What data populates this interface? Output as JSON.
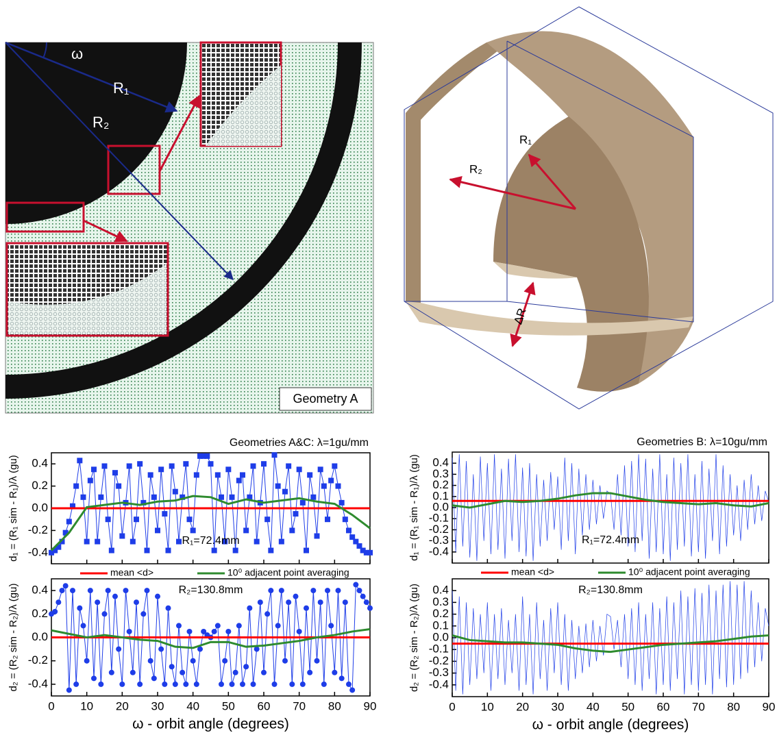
{
  "figure": {
    "geometry_a": {
      "omega": "ω",
      "r1": "R₁",
      "r2": "R₂",
      "caption": "Geometry A"
    },
    "geometry_b": {
      "r1": "R₁",
      "r2": "R₂",
      "delta_r": "ΔR"
    }
  },
  "chart_data": [
    {
      "type": "line",
      "title": "Geometries A&C: λ=1gu/mm",
      "y_label": "d₁ = (R₁ sim - R₁)/λ (gu)",
      "annotation": "R₁=72.4mm",
      "x": [
        0,
        1,
        2,
        3,
        4,
        5,
        6,
        7,
        8,
        9,
        10,
        11,
        12,
        13,
        14,
        15,
        16,
        17,
        18,
        19,
        20,
        21,
        22,
        23,
        24,
        25,
        26,
        27,
        28,
        29,
        30,
        31,
        32,
        33,
        34,
        35,
        36,
        37,
        38,
        39,
        40,
        41,
        42,
        43,
        44,
        45,
        46,
        47,
        48,
        49,
        50,
        51,
        52,
        53,
        54,
        55,
        56,
        57,
        58,
        59,
        60,
        61,
        62,
        63,
        64,
        65,
        66,
        67,
        68,
        69,
        70,
        71,
        72,
        73,
        74,
        75,
        76,
        77,
        78,
        79,
        80,
        81,
        82,
        83,
        84,
        85,
        86,
        87,
        88,
        89,
        90
      ],
      "xlim": [
        0,
        90
      ],
      "xticks": [
        0,
        10,
        20,
        30,
        40,
        50,
        60,
        70,
        80,
        90
      ],
      "show_xtick_labels": false,
      "ylim": [
        -0.5,
        0.5
      ],
      "yticks": [
        -0.4,
        -0.2,
        {
          "value": 0,
          "label": "0.0"
        },
        0.2,
        0.4
      ],
      "legend": "below",
      "mean": {
        "name": "mean <d>",
        "color": "#ff0000",
        "value": 0
      },
      "series": [
        {
          "color": "#1e3de8",
          "marker": "square",
          "values": [
            -0.4,
            -0.38,
            -0.35,
            -0.3,
            -0.22,
            -0.12,
            0.02,
            0.2,
            0.43,
            0.1,
            -0.3,
            0.25,
            0.35,
            -0.3,
            0.1,
            0.38,
            -0.1,
            -0.38,
            0.32,
            0.2,
            -0.25,
            0.05,
            0.38,
            -0.3,
            -0.1,
            0.4,
            0.05,
            -0.38,
            0.3,
            0.1,
            -0.2,
            0.35,
            -0.05,
            -0.38,
            0.38,
            0.15,
            -0.3,
            0.1,
            0.4,
            -0.1,
            -0.2,
            0.3,
            0.47,
            0.47,
            0.47,
            0.4,
            -0.38,
            0.3,
            0.1,
            -0.3,
            0.35,
            0.1,
            -0.38,
            0.25,
            0.3,
            -0.2,
            0.1,
            0.38,
            -0.3,
            0.05,
            0.4,
            -0.1,
            -0.38,
            0.48,
            0.2,
            -0.3,
            0.15,
            0.38,
            -0.2,
            -0.05,
            0.35,
            0.05,
            -0.38,
            0.3,
            0.1,
            -0.25,
            0.35,
            0.2,
            -0.1,
            0.25,
            0.38,
            0.2,
            0.05,
            -0.1,
            -0.2,
            -0.26,
            -0.3,
            -0.34,
            -0.38,
            -0.4,
            -0.4
          ]
        },
        {
          "name": "10⁰ adjacent point averaging",
          "color": "#2e8b2e",
          "x": [
            0,
            5,
            10,
            15,
            20,
            25,
            30,
            35,
            40,
            45,
            50,
            55,
            60,
            65,
            70,
            75,
            80,
            85,
            90
          ],
          "values": [
            -0.38,
            -0.22,
            0.01,
            0.03,
            0.05,
            0.03,
            0.06,
            0.07,
            0.11,
            0.1,
            0.04,
            0.08,
            0.05,
            0.07,
            0.09,
            0.06,
            0.04,
            -0.06,
            -0.18
          ]
        }
      ]
    },
    {
      "type": "line",
      "y_label": "d₂ = (R₂ sim - R₂)/λ (gu)",
      "annotation": "R₂=130.8mm",
      "x_label": "ω - orbit angle (degrees)",
      "x": [
        0,
        1,
        2,
        3,
        4,
        5,
        6,
        7,
        8,
        9,
        10,
        11,
        12,
        13,
        14,
        15,
        16,
        17,
        18,
        19,
        20,
        21,
        22,
        23,
        24,
        25,
        26,
        27,
        28,
        29,
        30,
        31,
        32,
        33,
        34,
        35,
        36,
        37,
        38,
        39,
        40,
        41,
        42,
        43,
        44,
        45,
        46,
        47,
        48,
        49,
        50,
        51,
        52,
        53,
        54,
        55,
        56,
        57,
        58,
        59,
        60,
        61,
        62,
        63,
        64,
        65,
        66,
        67,
        68,
        69,
        70,
        71,
        72,
        73,
        74,
        75,
        76,
        77,
        78,
        79,
        80,
        81,
        82,
        83,
        84,
        85,
        86,
        87,
        88,
        89,
        90
      ],
      "xlim": [
        0,
        90
      ],
      "xticks": [
        0,
        10,
        20,
        30,
        40,
        50,
        60,
        70,
        80,
        90
      ],
      "ylim": [
        -0.5,
        0.5
      ],
      "yticks": [
        -0.4,
        -0.2,
        {
          "value": 0,
          "label": "0.0"
        },
        0.2,
        0.4
      ],
      "mean": {
        "color": "#ff0000",
        "value": 0
      },
      "series": [
        {
          "color": "#1e3de8",
          "marker": "circle",
          "values": [
            0.2,
            0.22,
            0.3,
            0.4,
            0.44,
            -0.45,
            0.4,
            -0.4,
            0.25,
            0.1,
            -0.2,
            0.4,
            -0.35,
            0.3,
            -0.4,
            0.2,
            0.4,
            -0.3,
            0.35,
            -0.1,
            -0.4,
            0.4,
            0.05,
            -0.3,
            0.3,
            -0.4,
            0.2,
            0.4,
            -0.2,
            -0.35,
            0.35,
            -0.1,
            -0.4,
            0.25,
            -0.25,
            -0.4,
            0.1,
            -0.3,
            -0.4,
            0.05,
            -0.2,
            -0.4,
            -0.1,
            0.05,
            0.02,
            0.0,
            0.05,
            0.1,
            -0.4,
            -0.2,
            0.05,
            -0.4,
            -0.3,
            0.1,
            -0.4,
            -0.25,
            0.25,
            -0.4,
            -0.1,
            0.3,
            -0.3,
            0.2,
            0.4,
            -0.4,
            0.1,
            0.4,
            -0.2,
            0.3,
            -0.4,
            0.35,
            0.05,
            -0.4,
            0.25,
            -0.3,
            0.4,
            -0.2,
            0.3,
            -0.4,
            0.4,
            0.1,
            -0.3,
            0.4,
            -0.35,
            0.3,
            -0.4,
            -0.45,
            0.45,
            0.4,
            0.35,
            0.3,
            0.25
          ]
        },
        {
          "color": "#2e8b2e",
          "x": [
            0,
            5,
            10,
            15,
            20,
            25,
            30,
            35,
            40,
            45,
            50,
            55,
            60,
            65,
            70,
            75,
            80,
            85,
            90
          ],
          "values": [
            0.06,
            0.03,
            0.0,
            0.02,
            0.0,
            -0.02,
            -0.03,
            -0.08,
            -0.09,
            -0.04,
            -0.04,
            -0.08,
            -0.07,
            -0.05,
            -0.03,
            0.0,
            0.02,
            0.05,
            0.07
          ]
        }
      ]
    },
    {
      "type": "line",
      "title": "Geometries B: λ=10gu/mm",
      "y_label": "d₁ = (R₁ sim - R₁)/λ (gu)",
      "annotation": "R₁=72.4mm",
      "x": [
        0,
        1,
        2,
        3,
        4,
        5,
        6,
        7,
        8,
        9,
        10,
        11,
        12,
        13,
        14,
        15,
        16,
        17,
        18,
        19,
        20,
        21,
        22,
        23,
        24,
        25,
        26,
        27,
        28,
        29,
        30,
        31,
        32,
        33,
        34,
        35,
        36,
        37,
        38,
        39,
        40,
        41,
        42,
        43,
        44,
        45,
        46,
        47,
        48,
        49,
        50,
        51,
        52,
        53,
        54,
        55,
        56,
        57,
        58,
        59,
        60,
        61,
        62,
        63,
        64,
        65,
        66,
        67,
        68,
        69,
        70,
        71,
        72,
        73,
        74,
        75,
        76,
        77,
        78,
        79,
        80,
        81,
        82,
        83,
        84,
        85,
        86,
        87,
        88,
        89,
        90
      ],
      "xlim": [
        0,
        90
      ],
      "xticks": [
        0,
        10,
        20,
        30,
        40,
        50,
        60,
        70,
        80,
        90
      ],
      "show_xtick_labels": false,
      "ylim": [
        -0.5,
        0.5
      ],
      "yticks": [
        -0.4,
        -0.3,
        -0.2,
        -0.1,
        {
          "value": 0,
          "label": "0.0"
        },
        0.1,
        0.2,
        0.3,
        0.4
      ],
      "legend": "below",
      "mean": {
        "name": "mean <d>",
        "color": "#ff0000",
        "value": 0.06
      },
      "series": [
        {
          "color": "#1e3de8",
          "marker": "none",
          "values": [
            0.45,
            -0.4,
            0.48,
            -0.35,
            0.42,
            -0.45,
            0.3,
            -0.48,
            0.46,
            -0.3,
            0.4,
            -0.42,
            0.48,
            -0.38,
            0.35,
            -0.46,
            0.44,
            -0.3,
            0.48,
            -0.4,
            0.36,
            -0.44,
            0.4,
            -0.48,
            0.3,
            -0.35,
            0.25,
            -0.3,
            0.32,
            -0.2,
            0.28,
            -0.38,
            0.45,
            -0.3,
            0.4,
            -0.42,
            0.35,
            -0.25,
            0.3,
            -0.2,
            0.25,
            -0.15,
            0.2,
            -0.1,
            0.15,
            0.12,
            -0.2,
            0.3,
            -0.25,
            0.38,
            -0.35,
            0.42,
            -0.4,
            0.48,
            -0.3,
            0.44,
            -0.46,
            0.35,
            -0.4,
            0.48,
            -0.42,
            0.3,
            -0.48,
            0.45,
            -0.38,
            0.4,
            -0.35,
            0.48,
            -0.44,
            0.3,
            -0.4,
            0.42,
            -0.46,
            0.35,
            -0.3,
            0.48,
            -0.42,
            0.38,
            -0.35,
            0.3,
            -0.25,
            0.2,
            -0.3,
            0.25,
            -0.2,
            0.3,
            -0.15,
            0.2,
            -0.12,
            0.15,
            0.05
          ]
        },
        {
          "name": "10⁰ adjacent point averaging",
          "color": "#2e8b2e",
          "x": [
            0,
            5,
            10,
            15,
            20,
            25,
            30,
            35,
            40,
            45,
            50,
            55,
            60,
            65,
            70,
            75,
            80,
            85,
            90
          ],
          "values": [
            0.02,
            0.0,
            0.03,
            0.06,
            0.05,
            0.06,
            0.08,
            0.11,
            0.13,
            0.13,
            0.1,
            0.07,
            0.05,
            0.04,
            0.03,
            0.04,
            0.02,
            0.01,
            0.04
          ]
        }
      ]
    },
    {
      "type": "line",
      "y_label": "d₂ = (R₂ sim - R₂)/λ (gu)",
      "annotation": "R₂=130.8mm",
      "x_label": "ω - orbit angle (degrees)",
      "x": [
        0,
        1,
        2,
        3,
        4,
        5,
        6,
        7,
        8,
        9,
        10,
        11,
        12,
        13,
        14,
        15,
        16,
        17,
        18,
        19,
        20,
        21,
        22,
        23,
        24,
        25,
        26,
        27,
        28,
        29,
        30,
        31,
        32,
        33,
        34,
        35,
        36,
        37,
        38,
        39,
        40,
        41,
        42,
        43,
        44,
        45,
        46,
        47,
        48,
        49,
        50,
        51,
        52,
        53,
        54,
        55,
        56,
        57,
        58,
        59,
        60,
        61,
        62,
        63,
        64,
        65,
        66,
        67,
        68,
        69,
        70,
        71,
        72,
        73,
        74,
        75,
        76,
        77,
        78,
        79,
        80,
        81,
        82,
        83,
        84,
        85,
        86,
        87,
        88,
        89,
        90
      ],
      "xlim": [
        0,
        90
      ],
      "xticks": [
        0,
        10,
        20,
        30,
        40,
        50,
        60,
        70,
        80,
        90
      ],
      "ylim": [
        -0.5,
        0.5
      ],
      "yticks": [
        -0.4,
        -0.3,
        -0.2,
        -0.1,
        {
          "value": 0,
          "label": "0.0"
        },
        0.1,
        0.2,
        0.3,
        0.4
      ],
      "mean": {
        "color": "#ff0000",
        "value": -0.05
      },
      "series": [
        {
          "color": "#1e3de8",
          "marker": "none",
          "values": [
            0.4,
            -0.45,
            0.35,
            -0.48,
            0.3,
            -0.4,
            0.25,
            -0.35,
            0.2,
            -0.3,
            0.3,
            -0.45,
            0.2,
            -0.35,
            0.25,
            -0.4,
            0.15,
            -0.3,
            0.2,
            -0.45,
            0.35,
            -0.4,
            0.2,
            -0.48,
            0.3,
            -0.35,
            0.15,
            -0.45,
            0.25,
            -0.3,
            0.3,
            -0.4,
            0.2,
            -0.45,
            0.15,
            -0.35,
            0.1,
            -0.3,
            0.12,
            -0.25,
            0.15,
            -0.2,
            0.1,
            -0.15,
            0.2,
            0.18,
            -0.1,
            0.15,
            -0.25,
            0.2,
            -0.35,
            0.25,
            -0.4,
            0.3,
            -0.45,
            0.2,
            -0.35,
            0.3,
            -0.48,
            0.25,
            -0.4,
            0.35,
            -0.45,
            0.3,
            -0.35,
            0.4,
            -0.48,
            0.35,
            -0.4,
            0.42,
            -0.45,
            0.38,
            -0.4,
            0.45,
            -0.48,
            0.4,
            -0.35,
            0.45,
            -0.42,
            0.48,
            -0.4,
            0.45,
            -0.35,
            0.48,
            -0.3,
            0.4,
            -0.25,
            0.3,
            -0.2,
            0.25,
            0.1
          ]
        },
        {
          "color": "#2e8b2e",
          "x": [
            0,
            5,
            10,
            15,
            20,
            25,
            30,
            35,
            40,
            45,
            50,
            55,
            60,
            65,
            70,
            75,
            80,
            85,
            90
          ],
          "values": [
            0.02,
            -0.02,
            -0.03,
            -0.04,
            -0.04,
            -0.05,
            -0.06,
            -0.09,
            -0.11,
            -0.12,
            -0.1,
            -0.08,
            -0.06,
            -0.05,
            -0.04,
            -0.03,
            -0.01,
            0.01,
            0.02
          ]
        }
      ]
    }
  ]
}
